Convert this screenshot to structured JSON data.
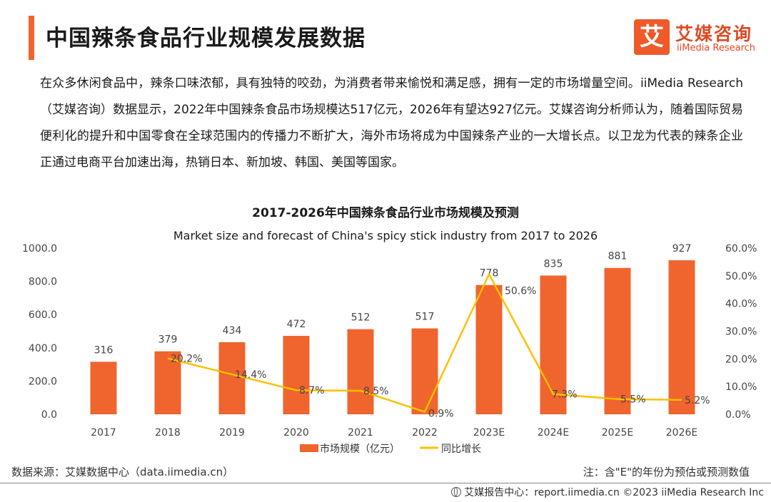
{
  "header": {
    "title": "中国辣条食品行业规模发展数据",
    "logo_mark": "艾",
    "logo_cn": "艾媒咨询",
    "logo_en": "iiMedia Research"
  },
  "paragraph": "在众多休闲食品中，辣条口味浓郁，具有独特的咬劲，为消费者带来愉悦和满足感，拥有一定的市场增量空间。iiMedia Research（艾媒咨询）数据显示，2022年中国辣条食品市场规模达517亿元，2026年有望达927亿元。艾媒咨询分析师认为，随着国际贸易便利化的提升和中国零食在全球范围内的传播力不断扩大，海外市场将成为中国辣条产业的一大增长点。以卫龙为代表的辣条企业正通过电商平台加速出海，热销日本、新加坡、韩国、美国等国家。",
  "chart_data": {
    "type": "bar",
    "title": "2017-2026年中国辣条食品行业市场规模及预测",
    "subtitle": "Market size and forecast of China's spicy stick industry from 2017 to 2026",
    "categories": [
      "2017",
      "2018",
      "2019",
      "2020",
      "2021",
      "2022",
      "2023E",
      "2024E",
      "2025E",
      "2026E"
    ],
    "series": [
      {
        "name": "市场规模（亿元）",
        "type": "bar",
        "axis": "left",
        "color": "#f0642d",
        "values": [
          316,
          379,
          434,
          472,
          512,
          517,
          778,
          835,
          881,
          927
        ],
        "labels": [
          "316",
          "379",
          "434",
          "472",
          "512",
          "517",
          "778",
          "835",
          "881",
          "927"
        ]
      },
      {
        "name": "同比增长",
        "type": "line",
        "axis": "right",
        "color": "#ffc000",
        "values": [
          null,
          20.2,
          14.4,
          8.7,
          8.5,
          0.9,
          50.6,
          7.3,
          5.5,
          5.2
        ],
        "labels": [
          "",
          "20.2%",
          "14.4%",
          "8.7%",
          "8.5%",
          "0.9%",
          "50.6%",
          "7.3%",
          "5.5%",
          "5.2%"
        ]
      }
    ],
    "y_left": {
      "min": 0,
      "max": 1000,
      "ticks": [
        "0.0",
        "200.0",
        "400.0",
        "600.0",
        "800.0",
        "1000.0"
      ]
    },
    "y_right": {
      "min": 0,
      "max": 60,
      "ticks": [
        "0.0%",
        "10.0%",
        "20.0%",
        "30.0%",
        "40.0%",
        "50.0%",
        "60.0%"
      ]
    },
    "legend": {
      "position": "bottom",
      "bar_label": "市场规模（亿元）",
      "line_label": "同比增长"
    },
    "grid": false
  },
  "footer": {
    "source": "数据来源：艾媒数据中心（data.iimedia.cn）",
    "note": "注：含\"E\"的年份为预估或预测数值",
    "copyright": "艾媒报告中心：report.iimedia.cn  ©2023  iiMedia Research  Inc"
  }
}
